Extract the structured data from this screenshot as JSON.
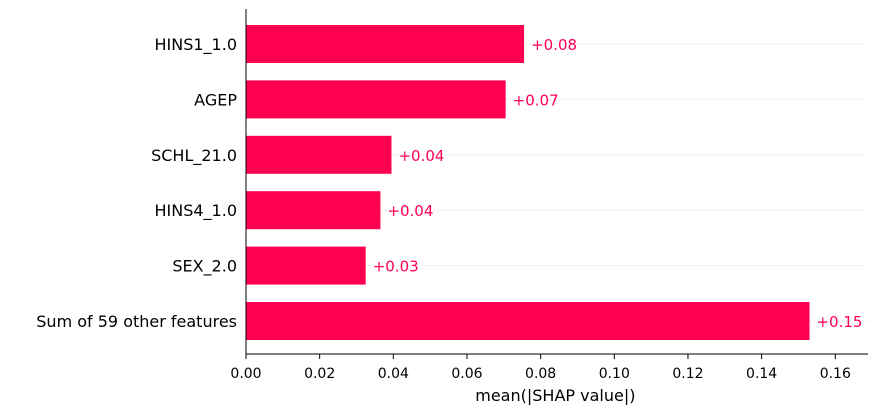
{
  "chart_data": {
    "type": "bar",
    "orientation": "horizontal",
    "categories": [
      "HINS1_1.0",
      "AGEP",
      "SCHL_21.0",
      "HINS4_1.0",
      "SEX_2.0",
      "Sum of 59 other features"
    ],
    "values": [
      0.0755,
      0.0705,
      0.0395,
      0.0365,
      0.0325,
      0.153
    ],
    "value_labels": [
      "+0.08",
      "+0.07",
      "+0.04",
      "+0.04",
      "+0.03",
      "+0.15"
    ],
    "xlabel": "mean(|SHAP value|)",
    "xlim": [
      0,
      0.168
    ],
    "xticks": [
      0.0,
      0.02,
      0.04,
      0.06,
      0.08,
      0.1,
      0.12,
      0.14,
      0.16
    ],
    "xtick_labels": [
      "0.00",
      "0.02",
      "0.04",
      "0.06",
      "0.08",
      "0.10",
      "0.12",
      "0.14",
      "0.16"
    ],
    "grid": "dotted horizontal guides per row",
    "bar_color": "#ff0051",
    "label_color": "#ff0051"
  }
}
